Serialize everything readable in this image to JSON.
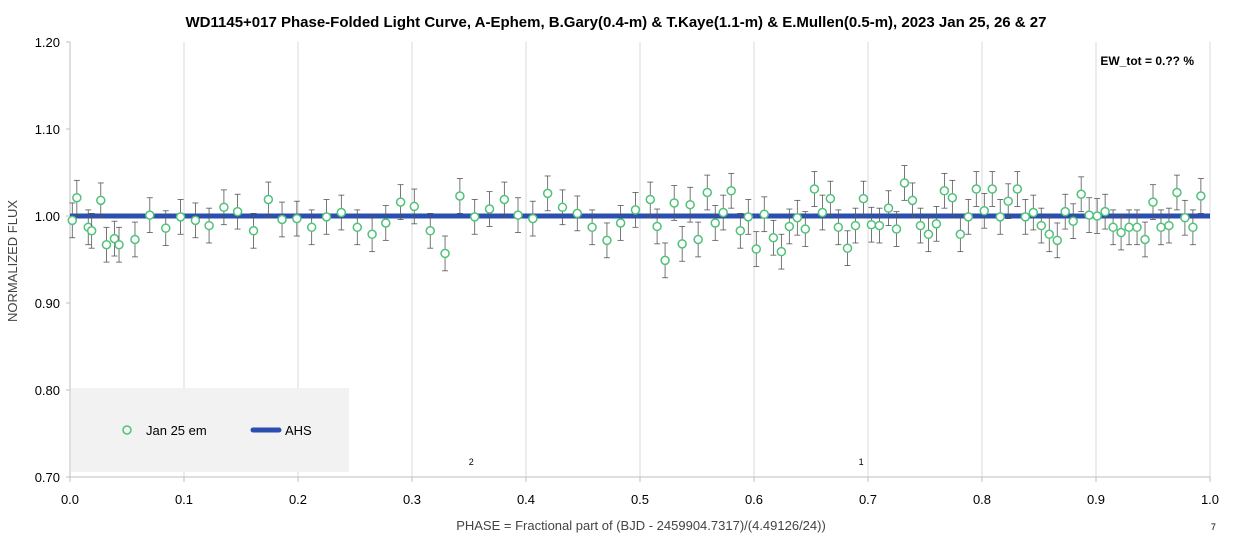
{
  "chart_data": {
    "type": "scatter",
    "title": "WD1145+017 Phase-Folded Light Curve, A-Ephem, B.Gary(0.4-m) & T.Kaye(1.1-m) & E.Mullen(0.5-m), 2023 Jan 25, 26 & 27",
    "xlabel": "PHASE = Fractional part of (BJD - 2459904.7317)/(4.49126/24))",
    "ylabel": "NORMALIZED FLUX",
    "xlim": [
      0.0,
      1.0
    ],
    "ylim": [
      0.7,
      1.2
    ],
    "x_ticks": [
      "0.0",
      "0.1",
      "0.2",
      "0.3",
      "0.4",
      "0.5",
      "0.6",
      "0.7",
      "0.8",
      "0.9",
      "1.0"
    ],
    "y_ticks": [
      "0.70",
      "0.80",
      "0.90",
      "1.00",
      "1.10",
      "1.20"
    ],
    "grid": "vertical",
    "legend_position": "bottom-left",
    "annotation": "EW_tot = 0.?? %",
    "markers": [
      {
        "label": "2",
        "x": 0.352
      },
      {
        "label": "1",
        "x": 0.694
      },
      {
        "label": "7",
        "x": 1.003
      }
    ],
    "series": [
      {
        "name": "Jan 25 em",
        "kind": "points-with-error-bars",
        "color": "#4fc27a",
        "x": [
          0.002,
          0.006,
          0.016,
          0.019,
          0.027,
          0.032,
          0.039,
          0.043,
          0.057,
          0.07,
          0.084,
          0.097,
          0.11,
          0.122,
          0.135,
          0.147,
          0.161,
          0.174,
          0.186,
          0.199,
          0.212,
          0.225,
          0.238,
          0.252,
          0.265,
          0.277,
          0.29,
          0.302,
          0.316,
          0.329,
          0.342,
          0.355,
          0.368,
          0.381,
          0.393,
          0.406,
          0.419,
          0.432,
          0.445,
          0.458,
          0.471,
          0.483,
          0.496,
          0.509,
          0.515,
          0.522,
          0.53,
          0.537,
          0.544,
          0.551,
          0.559,
          0.566,
          0.573,
          0.58,
          0.588,
          0.595,
          0.602,
          0.609,
          0.617,
          0.624,
          0.631,
          0.638,
          0.645,
          0.653,
          0.66,
          0.667,
          0.674,
          0.682,
          0.689,
          0.696,
          0.703,
          0.71,
          0.718,
          0.725,
          0.732,
          0.739,
          0.746,
          0.753,
          0.76,
          0.767,
          0.774,
          0.781,
          0.788,
          0.795,
          0.802,
          0.809,
          0.816,
          0.823,
          0.831,
          0.838,
          0.845,
          0.852,
          0.859,
          0.866,
          0.873,
          0.88,
          0.887,
          0.894,
          0.901,
          0.908,
          0.915,
          0.922,
          0.929,
          0.936,
          0.943,
          0.95,
          0.957,
          0.964,
          0.971,
          0.978,
          0.985,
          0.992
        ],
        "y": [
          0.995,
          1.021,
          0.987,
          0.983,
          1.018,
          0.967,
          0.974,
          0.967,
          0.973,
          1.001,
          0.986,
          0.999,
          0.995,
          0.989,
          1.01,
          1.005,
          0.983,
          1.019,
          0.996,
          0.997,
          0.987,
          0.999,
          1.004,
          0.987,
          0.979,
          0.992,
          1.016,
          1.011,
          0.983,
          0.957,
          1.023,
          0.999,
          1.008,
          1.019,
          1.001,
          0.997,
          1.026,
          1.01,
          1.003,
          0.987,
          0.972,
          0.992,
          1.007,
          1.019,
          0.988,
          0.949,
          1.015,
          0.968,
          1.013,
          0.973,
          1.027,
          0.992,
          1.004,
          1.029,
          0.983,
          0.999,
          0.962,
          1.002,
          0.975,
          0.959,
          0.988,
          0.998,
          0.985,
          1.031,
          1.004,
          1.02,
          0.987,
          0.963,
          0.989,
          1.02,
          0.99,
          0.989,
          1.009,
          0.985,
          1.038,
          1.018,
          0.989,
          0.979,
          0.991,
          1.029,
          1.021,
          0.979,
          0.999,
          1.031,
          1.006,
          1.031,
          0.999,
          1.017,
          1.031,
          0.999,
          1.004,
          0.989,
          0.979,
          0.972,
          1.005,
          0.994,
          1.025,
          1.001,
          1.0,
          1.005,
          0.987,
          0.981,
          0.987,
          0.987,
          0.973,
          1.016,
          0.987,
          0.989,
          1.027,
          0.998,
          0.987,
          1.023
        ],
        "error": 0.02
      },
      {
        "name": "AHS",
        "kind": "line",
        "color": "#2b4fae",
        "x": [
          0.0,
          1.0
        ],
        "y": [
          1.0,
          1.0
        ]
      }
    ]
  }
}
